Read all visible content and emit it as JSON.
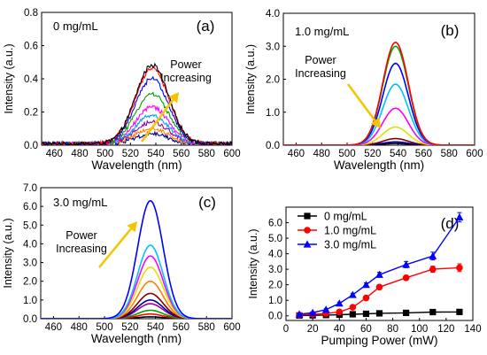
{
  "chart_data": [
    {
      "id": "a",
      "type": "line",
      "panel_label": "(a)",
      "annotation": "0 mg/mL",
      "arrow_text": [
        "Power",
        "Increasing"
      ],
      "xlabel": "Wavelength (nm)",
      "ylabel": "Intensity (a.u.)",
      "xlim": [
        450,
        600
      ],
      "ylim": [
        0,
        0.8
      ],
      "xticks": [
        460,
        480,
        500,
        520,
        540,
        560,
        580,
        600
      ],
      "yticks": [
        0.0,
        0.2,
        0.4,
        0.6,
        0.8
      ],
      "tick_decimals": 1,
      "peak_center": 537,
      "peak_width": 13,
      "noise": 0.012,
      "series": [
        {
          "color": "#000000",
          "peak": 0.47
        },
        {
          "color": "#ff0000",
          "peak": 0.45
        },
        {
          "color": "#0000ff",
          "peak": 0.39
        },
        {
          "color": "#00a000",
          "peak": 0.3
        },
        {
          "color": "#ff00ff",
          "peak": 0.22
        },
        {
          "color": "#00a0ff",
          "peak": 0.17
        },
        {
          "color": "#a000a0",
          "peak": 0.13
        },
        {
          "color": "#ff8000",
          "peak": 0.09
        },
        {
          "color": "#000090",
          "peak": 0.06
        }
      ]
    },
    {
      "id": "b",
      "type": "line",
      "panel_label": "(b)",
      "annotation": "1.0 mg/mL",
      "arrow_text": [
        "Power",
        "Increasing"
      ],
      "xlabel": "Wavelength (nm)",
      "ylabel": "Intensity (a.u.)",
      "xlim": [
        450,
        600
      ],
      "ylim": [
        0,
        4.0
      ],
      "xticks": [
        460,
        480,
        500,
        520,
        540,
        560,
        580,
        600
      ],
      "yticks": [
        0.0,
        1.0,
        2.0,
        3.0,
        4.0
      ],
      "tick_decimals": 1,
      "peak_center": 538,
      "peak_width": 10,
      "noise": 0.0,
      "series": [
        {
          "color": "#ff0000",
          "peak": 3.12
        },
        {
          "color": "#00b000",
          "peak": 3.0
        },
        {
          "color": "#0000ff",
          "peak": 2.48
        },
        {
          "color": "#00c0ff",
          "peak": 1.85
        },
        {
          "color": "#ff00ff",
          "peak": 1.12
        },
        {
          "color": "#e0e000",
          "peak": 0.55
        },
        {
          "color": "#800000",
          "peak": 0.2
        },
        {
          "color": "#0000a0",
          "peak": 0.1
        },
        {
          "color": "#000000",
          "peak": 0.05
        }
      ]
    },
    {
      "id": "c",
      "type": "line",
      "panel_label": "(c)",
      "annotation": "3.0 mg/mL",
      "arrow_text": [
        "Power",
        "Increasing"
      ],
      "xlabel": "Wavelength (nm)",
      "ylabel": "Intensity (a.u.)",
      "xlim": [
        450,
        600
      ],
      "ylim": [
        0,
        7.0
      ],
      "xticks": [
        460,
        480,
        500,
        520,
        540,
        560,
        580,
        600
      ],
      "yticks": [
        0.0,
        1.0,
        2.0,
        3.0,
        4.0,
        5.0,
        6.0,
        7.0
      ],
      "tick_decimals": 1,
      "peak_center": 536,
      "peak_width": 10,
      "noise": 0.0,
      "series": [
        {
          "color": "#0000ff",
          "peak": 6.3
        },
        {
          "color": "#00c0ff",
          "peak": 3.92
        },
        {
          "color": "#ff00ff",
          "peak": 3.35
        },
        {
          "color": "#e0e000",
          "peak": 2.75
        },
        {
          "color": "#ff8000",
          "peak": 2.0
        },
        {
          "color": "#800000",
          "peak": 1.35
        },
        {
          "color": "#000090",
          "peak": 1.0
        },
        {
          "color": "#a000a0",
          "peak": 0.8
        },
        {
          "color": "#00a000",
          "peak": 0.45
        },
        {
          "color": "#ff0000",
          "peak": 0.25
        },
        {
          "color": "#000000",
          "peak": 0.1
        }
      ]
    },
    {
      "id": "d",
      "type": "scatter",
      "panel_label": "(d)",
      "xlabel": "Pumping Power (mW)",
      "ylabel": "Intensity (a.u.)",
      "xlim": [
        0,
        140
      ],
      "ylim": [
        -0.3,
        7.0
      ],
      "xticks": [
        0,
        20,
        40,
        60,
        80,
        100,
        120,
        140
      ],
      "yticks": [
        0.0,
        1.0,
        2.0,
        3.0,
        4.0,
        5.0,
        6.0
      ],
      "tick_decimals": 1,
      "legend": "top-left",
      "series": [
        {
          "name": "0 mg/mL",
          "color": "#000000",
          "marker": "square",
          "x": [
            10,
            20,
            30,
            40,
            50,
            60,
            70,
            90,
            110,
            130
          ],
          "y": [
            0.02,
            0.03,
            0.05,
            0.07,
            0.1,
            0.13,
            0.16,
            0.19,
            0.24,
            0.25
          ],
          "err": [
            0.02,
            0.02,
            0.02,
            0.02,
            0.02,
            0.02,
            0.02,
            0.03,
            0.03,
            0.03
          ]
        },
        {
          "name": "1.0 mg/mL",
          "color": "#ff0000",
          "marker": "circle",
          "x": [
            10,
            20,
            30,
            40,
            50,
            60,
            70,
            90,
            110,
            130
          ],
          "y": [
            0.05,
            0.1,
            0.15,
            0.25,
            0.55,
            1.15,
            1.85,
            2.45,
            3.0,
            3.1
          ],
          "err": [
            0.03,
            0.03,
            0.04,
            0.05,
            0.06,
            0.08,
            0.1,
            0.15,
            0.2,
            0.25
          ]
        },
        {
          "name": "3.0 mg/mL",
          "color": "#0000ff",
          "marker": "triangle",
          "x": [
            10,
            20,
            30,
            40,
            50,
            60,
            70,
            90,
            110,
            130
          ],
          "y": [
            0.1,
            0.2,
            0.4,
            0.8,
            1.35,
            2.0,
            2.65,
            3.3,
            3.85,
            6.35
          ],
          "err": [
            0.04,
            0.05,
            0.06,
            0.08,
            0.1,
            0.12,
            0.15,
            0.2,
            0.25,
            0.3
          ]
        }
      ]
    }
  ]
}
